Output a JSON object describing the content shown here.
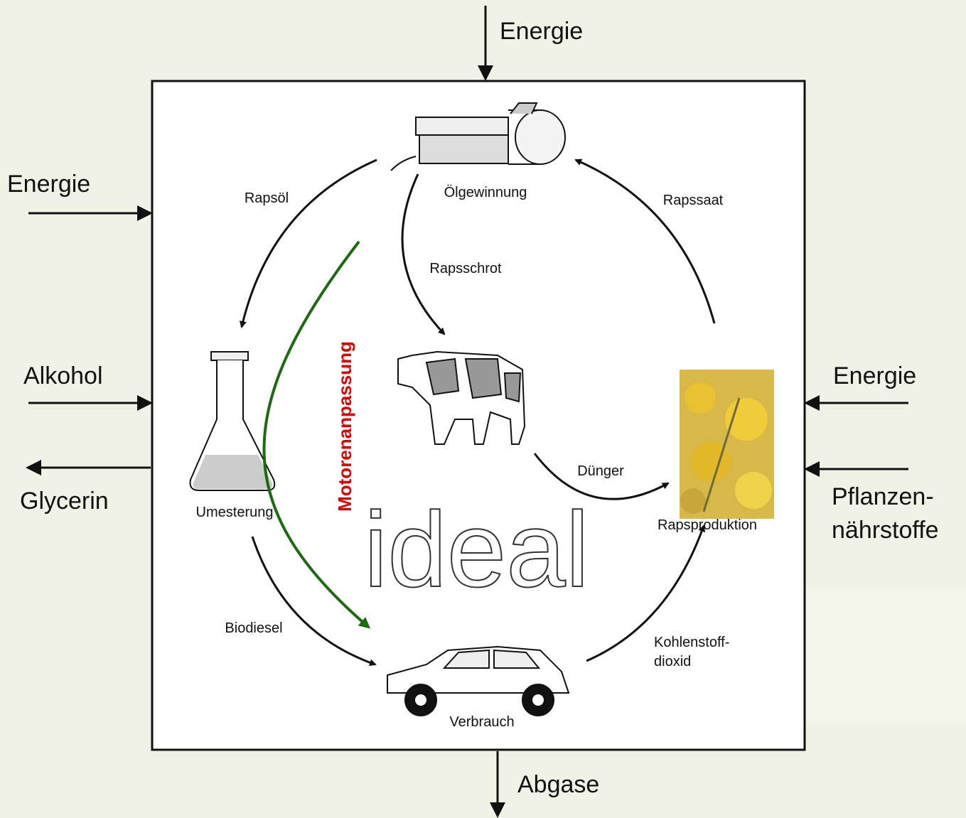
{
  "inputs": {
    "top": "Energie",
    "left_energy": "Energie",
    "alcohol": "Alkohol",
    "right_energy": "Energie",
    "nutrients": [
      "Pflanzen-",
      "nährstoffe"
    ]
  },
  "outputs": {
    "glycerin": "Glycerin",
    "exhaust": "Abgase"
  },
  "nodes": [
    {
      "label": "Ölgewinnung"
    },
    {
      "label": "Umesterung"
    },
    {
      "label": "Verbrauch"
    },
    {
      "label": "Rapsproduktion"
    }
  ],
  "flows": [
    {
      "label": [
        "Rapsöl"
      ]
    },
    {
      "label": [
        "Rapsschrot"
      ]
    },
    {
      "label": [
        "Rapssaat"
      ]
    },
    {
      "label": [
        "Dünger"
      ]
    },
    {
      "label": [
        "Biodiesel"
      ]
    },
    {
      "label": [
        "Kohlenstoff-",
        "dioxid"
      ]
    }
  ],
  "annotation": "Motorenanpassung",
  "watermark": "ideal"
}
